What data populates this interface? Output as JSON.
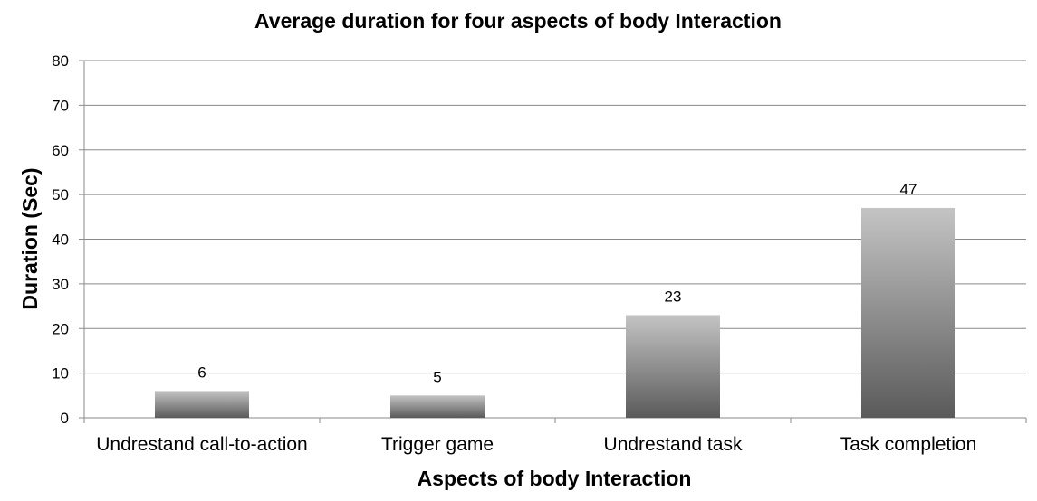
{
  "chart_data": {
    "type": "bar",
    "title": "Average duration for four aspects of body Interaction",
    "xlabel": "Aspects of body Interaction",
    "ylabel": "Duration (Sec)",
    "categories": [
      "Undrestand call-to-action",
      "Trigger game",
      "Undrestand task",
      "Task completion"
    ],
    "values": [
      6,
      5,
      23,
      47
    ],
    "data_labels": [
      "6",
      "5",
      "23",
      "47"
    ],
    "ylim": [
      0,
      80
    ],
    "yticks": [
      0,
      10,
      20,
      30,
      40,
      50,
      60,
      70,
      80
    ],
    "grid": true,
    "legend": "none",
    "colors": {
      "bar_light": "#c4c4c4",
      "bar_dark": "#5a5a5a",
      "grid": "#8a8a8a"
    }
  }
}
